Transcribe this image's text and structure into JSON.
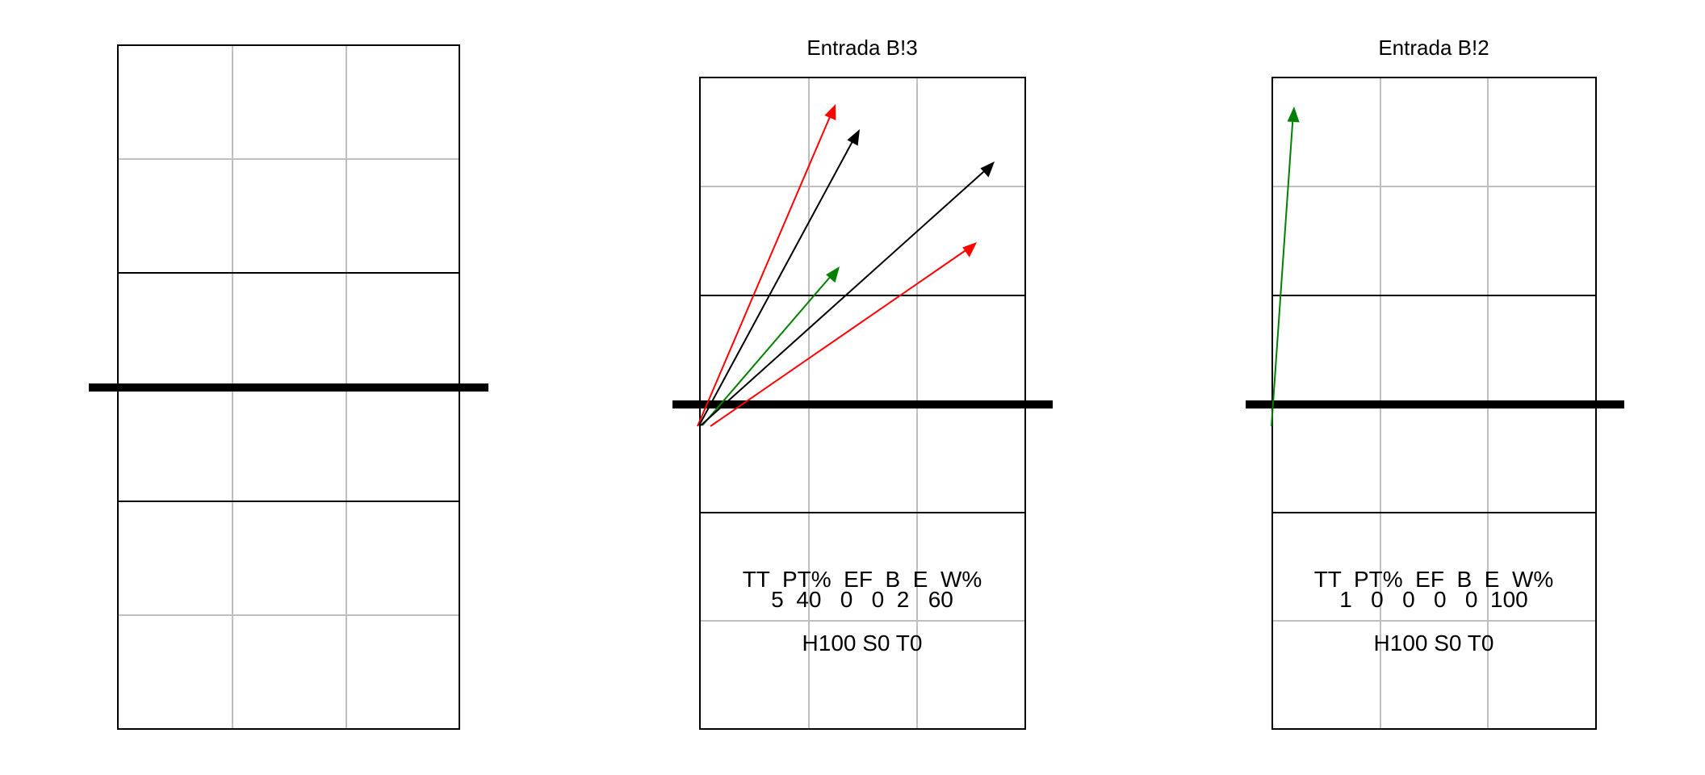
{
  "panels": [
    {
      "id": "left",
      "title": "",
      "stats_header": "",
      "stats_values": "",
      "footer": "",
      "arrows": []
    },
    {
      "id": "middle",
      "title": "Entrada B!3",
      "stats_header": "TT  PT%  EF  B  E  W%",
      "stats_values": "5  40   0   0  2   60",
      "footer": "H100 S0 T0",
      "arrows": [
        {
          "color": "#ff0000"
        },
        {
          "color": "#000000"
        },
        {
          "color": "#008000"
        },
        {
          "color": "#000000"
        },
        {
          "color": "#ff0000"
        }
      ]
    },
    {
      "id": "right",
      "title": "Entrada B!2",
      "stats_header": "TT  PT%  EF  B  E  W%",
      "stats_values": "1   0   0   0   0  100",
      "footer": "H100 S0 T0",
      "arrows": [
        {
          "color": "#008000"
        }
      ]
    }
  ]
}
